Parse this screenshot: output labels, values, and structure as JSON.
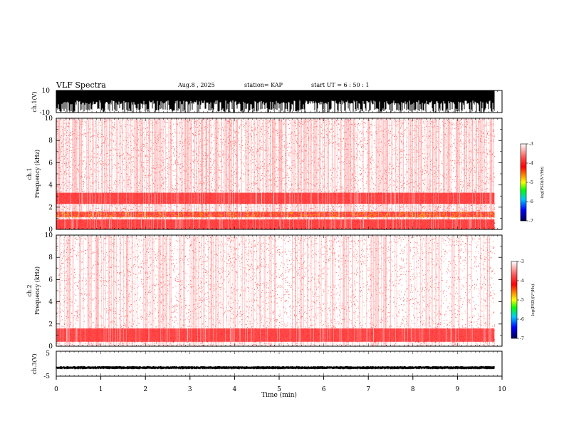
{
  "header": {
    "title": "VLF Spectra",
    "date": "Aug.8  , 2025",
    "station": "station= KAP",
    "start_ut": "start  UT  =   6  : 50 : 1"
  },
  "colorbar_label": "log(PSD)(V²/Hz)",
  "chart_data": [
    {
      "type": "line",
      "name": "ch1-waveform",
      "ylabel": "ch.1(V)",
      "ylim": [
        -10,
        10
      ],
      "yticks": [
        "10",
        "-10"
      ],
      "xlim": [
        0,
        10
      ],
      "note": "dense saturating waveform, mostly near +10 to 0 V"
    },
    {
      "type": "heatmap",
      "name": "ch1-spectrogram",
      "ylabel": "ch.1\nFrequency  (kHz)",
      "ylim": [
        0,
        10
      ],
      "yticks": [
        "0",
        "2",
        "4",
        "6",
        "8",
        "10"
      ],
      "xlim": [
        0,
        9.83
      ],
      "colorbar": {
        "ticks": [
          "-3",
          "-4",
          "-5",
          "-6",
          "-7"
        ],
        "range": [
          -7,
          -3
        ]
      },
      "bands": [
        {
          "f_low": 2.3,
          "f_high": 3.3,
          "level": -3.8
        },
        {
          "f_low": 1.1,
          "f_high": 1.6,
          "level": -4.7
        },
        {
          "f_low": 0.0,
          "f_high": 0.9,
          "level": -4.0
        }
      ]
    },
    {
      "type": "heatmap",
      "name": "ch2-spectrogram",
      "ylabel": "ch.2\nFrequency  (kHz)",
      "ylim": [
        0,
        10
      ],
      "yticks": [
        "0",
        "2",
        "4",
        "6",
        "8",
        "10"
      ],
      "xlim": [
        0,
        9.83
      ],
      "colorbar": {
        "ticks": [
          "-3",
          "-4",
          "-5",
          "-6",
          "-7"
        ],
        "range": [
          -7,
          -3
        ]
      },
      "bands": [
        {
          "f_low": 0.4,
          "f_high": 1.6,
          "level": -4.0
        }
      ]
    },
    {
      "type": "line",
      "name": "ch3-waveform",
      "ylabel": "ch.3(V)",
      "ylim": [
        -5,
        5
      ],
      "yticks": [
        "5",
        "-5"
      ],
      "xlim": [
        0,
        10
      ],
      "level": -1.6
    }
  ],
  "x_axis": {
    "label": "Time  (min)",
    "ticks": [
      "0",
      "1",
      "2",
      "3",
      "4",
      "5",
      "6",
      "7",
      "8",
      "9",
      "10"
    ]
  }
}
